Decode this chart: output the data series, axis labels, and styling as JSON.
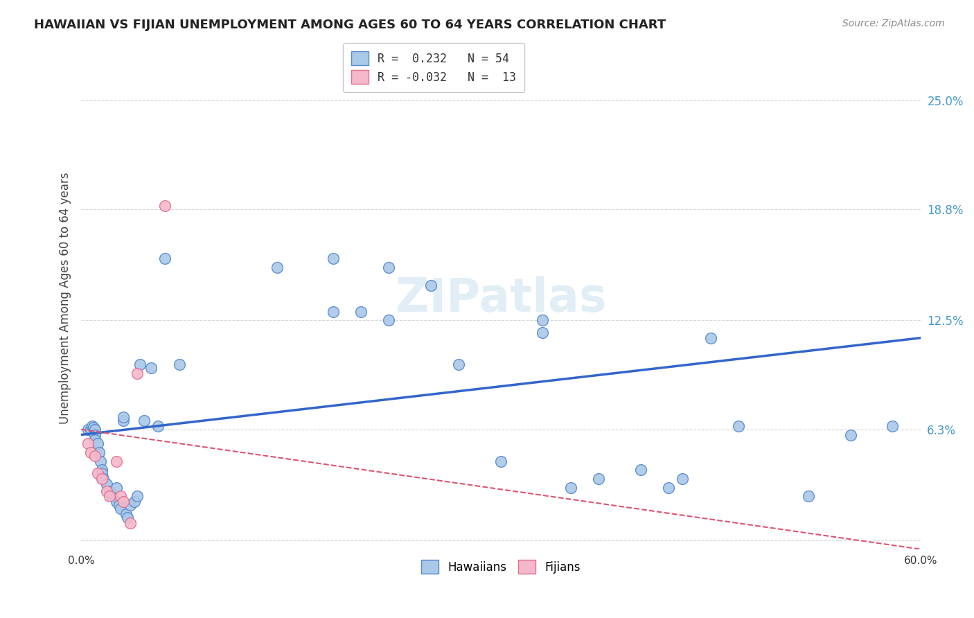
{
  "title": "HAWAIIAN VS FIJIAN UNEMPLOYMENT AMONG AGES 60 TO 64 YEARS CORRELATION CHART",
  "source": "Source: ZipAtlas.com",
  "ylabel": "Unemployment Among Ages 60 to 64 years",
  "xlim": [
    0.0,
    0.6
  ],
  "ylim": [
    -0.005,
    0.28
  ],
  "yticks": [
    0.0,
    0.063,
    0.125,
    0.188,
    0.25
  ],
  "ytick_labels": [
    "",
    "6.3%",
    "12.5%",
    "18.8%",
    "25.0%"
  ],
  "xticks": [
    0.0,
    0.1,
    0.2,
    0.3,
    0.4,
    0.5,
    0.6
  ],
  "xtick_labels": [
    "0.0%",
    "",
    "",
    "",
    "",
    "",
    "60.0%"
  ],
  "hawaiian_color": "#aac8e8",
  "fijian_color": "#f5b8cb",
  "hawaiian_edge": "#5588cc",
  "fijian_edge": "#e07090",
  "trend_hawaiian_color": "#3366cc",
  "trend_fijian_color": "#e05070",
  "background_color": "#ffffff",
  "grid_color": "#cccccc",
  "hawaiian_x": [
    0.005,
    0.007,
    0.008,
    0.009,
    0.01,
    0.01,
    0.01,
    0.012,
    0.013,
    0.014,
    0.015,
    0.015,
    0.016,
    0.018,
    0.02,
    0.022,
    0.025,
    0.025,
    0.027,
    0.028,
    0.03,
    0.03,
    0.032,
    0.033,
    0.035,
    0.038,
    0.04,
    0.042,
    0.045,
    0.05,
    0.055,
    0.06,
    0.07,
    0.14,
    0.18,
    0.18,
    0.2,
    0.22,
    0.22,
    0.25,
    0.27,
    0.3,
    0.33,
    0.33,
    0.35,
    0.37,
    0.4,
    0.42,
    0.43,
    0.45,
    0.47,
    0.52,
    0.55,
    0.58
  ],
  "hawaiian_y": [
    0.063,
    0.063,
    0.065,
    0.064,
    0.063,
    0.06,
    0.057,
    0.055,
    0.05,
    0.045,
    0.04,
    0.038,
    0.035,
    0.032,
    0.028,
    0.025,
    0.03,
    0.022,
    0.02,
    0.018,
    0.068,
    0.07,
    0.015,
    0.013,
    0.02,
    0.022,
    0.025,
    0.1,
    0.068,
    0.098,
    0.065,
    0.16,
    0.1,
    0.155,
    0.13,
    0.16,
    0.13,
    0.125,
    0.155,
    0.145,
    0.1,
    0.045,
    0.125,
    0.118,
    0.03,
    0.035,
    0.04,
    0.03,
    0.035,
    0.115,
    0.065,
    0.025,
    0.06,
    0.065
  ],
  "fijian_x": [
    0.005,
    0.007,
    0.01,
    0.012,
    0.015,
    0.018,
    0.02,
    0.025,
    0.028,
    0.03,
    0.035,
    0.04,
    0.06
  ],
  "fijian_y": [
    0.055,
    0.05,
    0.048,
    0.038,
    0.035,
    0.028,
    0.025,
    0.045,
    0.025,
    0.022,
    0.01,
    0.095,
    0.19
  ],
  "trend_h_x0": 0.0,
  "trend_h_x1": 0.6,
  "trend_h_y0": 0.06,
  "trend_h_y1": 0.115,
  "trend_f_x0": 0.0,
  "trend_f_x1": 0.6,
  "trend_f_y0": 0.063,
  "trend_f_y1": -0.005
}
